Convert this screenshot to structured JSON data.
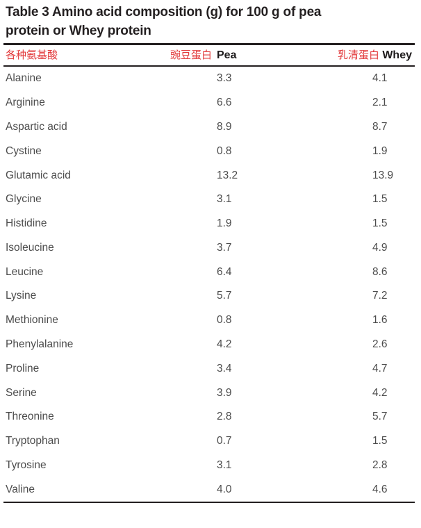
{
  "table": {
    "title_line1": "Table 3 Amino acid composition (g) for 100 g of pea",
    "title_line2": "protein or Whey protein",
    "header": {
      "amino_acid_zh": "各种氨基酸",
      "pea_zh": "豌豆蛋白",
      "pea": "Pea",
      "whey_zh": "乳清蛋白",
      "whey": "Whey"
    },
    "rows": [
      {
        "name": "Alanine",
        "pea": "3.3",
        "whey": "4.1"
      },
      {
        "name": "Arginine",
        "pea": "6.6",
        "whey": "2.1"
      },
      {
        "name": "Aspartic acid",
        "pea": "8.9",
        "whey": "8.7"
      },
      {
        "name": "Cystine",
        "pea": "0.8",
        "whey": "1.9"
      },
      {
        "name": "Glutamic acid",
        "pea": "13.2",
        "whey": "13.9"
      },
      {
        "name": "Glycine",
        "pea": "3.1",
        "whey": "1.5"
      },
      {
        "name": "Histidine",
        "pea": "1.9",
        "whey": "1.5"
      },
      {
        "name": "Isoleucine",
        "pea": "3.7",
        "whey": "4.9"
      },
      {
        "name": "Leucine",
        "pea": "6.4",
        "whey": "8.6"
      },
      {
        "name": "Lysine",
        "pea": "5.7",
        "whey": "7.2"
      },
      {
        "name": "Methionine",
        "pea": "0.8",
        "whey": "1.6"
      },
      {
        "name": "Phenylalanine",
        "pea": "4.2",
        "whey": "2.6"
      },
      {
        "name": "Proline",
        "pea": "3.4",
        "whey": "4.7"
      },
      {
        "name": "Serine",
        "pea": "3.9",
        "whey": "4.2"
      },
      {
        "name": "Threonine",
        "pea": "2.8",
        "whey": "5.7"
      },
      {
        "name": "Tryptophan",
        "pea": "0.7",
        "whey": "1.5"
      },
      {
        "name": "Tyrosine",
        "pea": "3.1",
        "whey": "2.8"
      },
      {
        "name": "Valine",
        "pea": "4.0",
        "whey": "4.6"
      }
    ],
    "colors": {
      "annotation_red": "#e23b3c",
      "title_black": "#231f20",
      "body_gray": "#4c4c4c"
    }
  }
}
